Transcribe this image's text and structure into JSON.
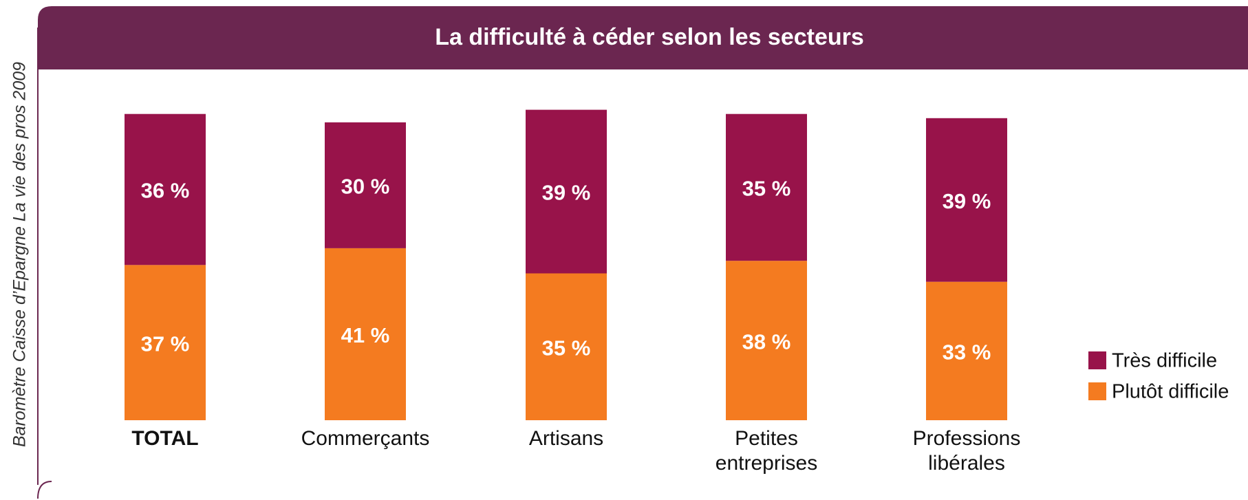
{
  "chart_data": {
    "type": "stacked_bar",
    "title": "La difficulté à céder selon les secteurs",
    "source": "Baromètre Caisse d’Epargne La vie des pros 2009",
    "categories": [
      "TOTAL",
      "Commerçants",
      "Artisans",
      "Petites entreprises",
      "Professions libérales"
    ],
    "series": [
      {
        "name": "Très difficile",
        "color": "#98134a",
        "values": [
          36,
          30,
          39,
          35,
          39
        ],
        "value_labels": [
          "36 %",
          "30 %",
          "39 %",
          "35 %",
          "39 %"
        ]
      },
      {
        "name": "Plutôt difficile",
        "color": "#f47b20",
        "values": [
          37,
          41,
          35,
          38,
          33
        ],
        "value_labels": [
          "37 %",
          "41 %",
          "35 %",
          "38 %",
          "33 %"
        ]
      }
    ]
  }
}
